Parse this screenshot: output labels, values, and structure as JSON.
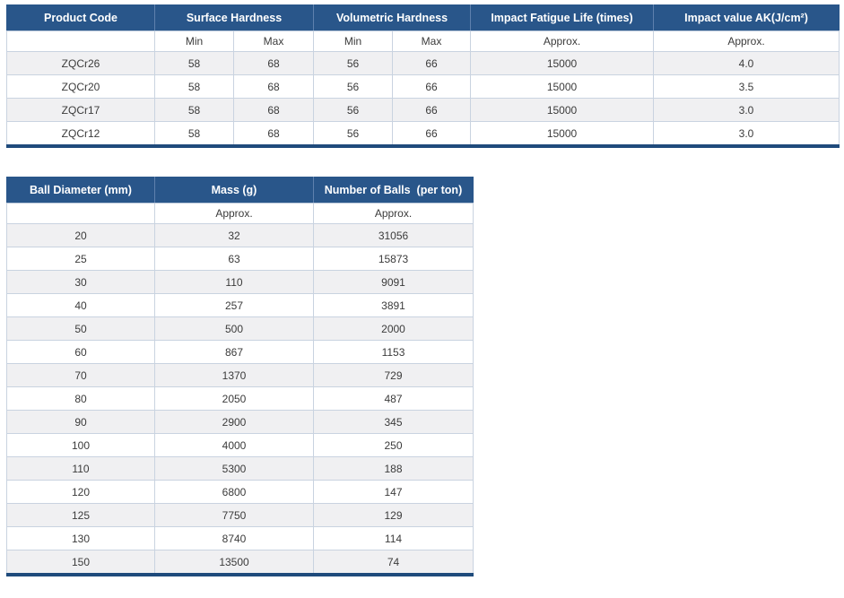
{
  "colors": {
    "header_bg": "#29568a",
    "header_text": "#ffffff",
    "row_alt_bg": "#f0f0f2",
    "row_bg": "#ffffff",
    "cell_text": "#3b3b3b",
    "grid_border": "#c9d3e0",
    "table_bottom_border": "#1f4b7c"
  },
  "table1": {
    "header": {
      "product_code": "Product Code",
      "surface_hardness": "Surface Hardness",
      "volumetric_hardness": "Volumetric Hardness",
      "impact_fatigue_life": "Impact Fatigue Life (times)",
      "impact_value": "Impact value AK(J/cm²)"
    },
    "subheader": [
      "",
      "Min",
      "Max",
      "Min",
      "Max",
      "Approx.",
      "Approx."
    ],
    "rows": [
      [
        "ZQCr26",
        "58",
        "68",
        "56",
        "66",
        "15000",
        "4.0"
      ],
      [
        "ZQCr20",
        "58",
        "68",
        "56",
        "66",
        "15000",
        "3.5"
      ],
      [
        "ZQCr17",
        "58",
        "68",
        "56",
        "66",
        "15000",
        "3.0"
      ],
      [
        "ZQCr12",
        "58",
        "68",
        "56",
        "66",
        "15000",
        "3.0"
      ]
    ]
  },
  "table2": {
    "header": {
      "ball_diameter": "Ball Diameter (mm)",
      "mass": "Mass (g)",
      "number_of_balls": "Number of Balls  (per ton)"
    },
    "subheader": [
      "",
      "Approx.",
      "Approx."
    ],
    "rows": [
      [
        "20",
        "32",
        "31056"
      ],
      [
        "25",
        "63",
        "15873"
      ],
      [
        "30",
        "110",
        "9091"
      ],
      [
        "40",
        "257",
        "3891"
      ],
      [
        "50",
        "500",
        "2000"
      ],
      [
        "60",
        "867",
        "1153"
      ],
      [
        "70",
        "1370",
        "729"
      ],
      [
        "80",
        "2050",
        "487"
      ],
      [
        "90",
        "2900",
        "345"
      ],
      [
        "100",
        "4000",
        "250"
      ],
      [
        "110",
        "5300",
        "188"
      ],
      [
        "120",
        "6800",
        "147"
      ],
      [
        "125",
        "7750",
        "129"
      ],
      [
        "130",
        "8740",
        "114"
      ],
      [
        "150",
        "13500",
        "74"
      ]
    ]
  }
}
